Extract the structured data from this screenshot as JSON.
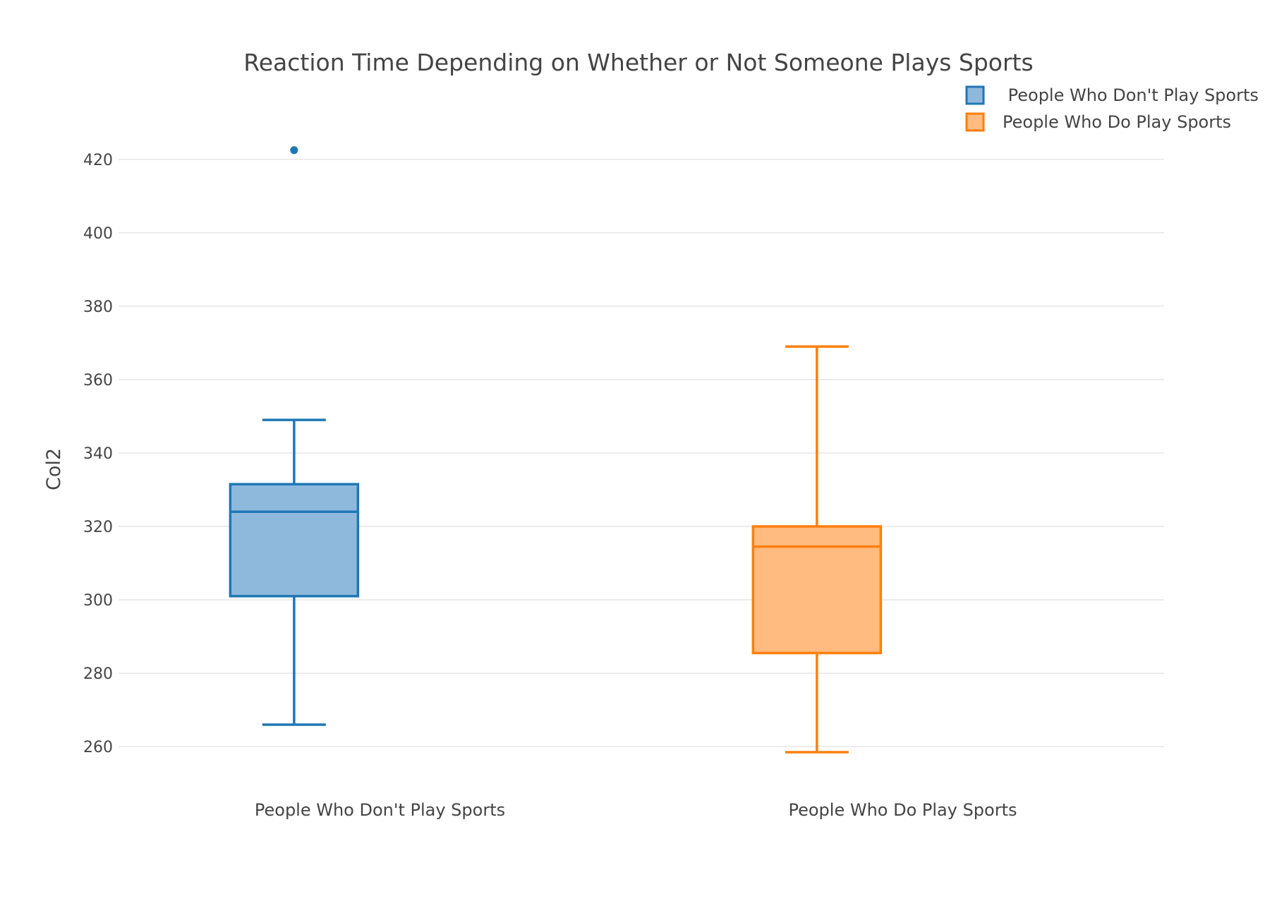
{
  "chart_data": {
    "type": "box",
    "title": "Reaction Time Depending on Whether or Not Someone Plays Sports",
    "xlabel": "",
    "ylabel": "Col2",
    "ylim": [
      251,
      424
    ],
    "yticks": [
      260,
      280,
      300,
      320,
      340,
      360,
      380,
      400,
      420
    ],
    "grid": true,
    "legend_position": "top-right",
    "categories": [
      "People Who Don't Play Sports",
      "People Who Do Play Sports"
    ],
    "series": [
      {
        "name": " People Who Don't Play Sports",
        "category": "People Who Don't Play Sports",
        "color": "#1f77b4",
        "fill": "#8fb9dc",
        "whisker_low": 266,
        "q1": 301,
        "median": 324,
        "q3": 331.5,
        "whisker_high": 349,
        "outliers": [
          422.5
        ]
      },
      {
        "name": "People Who Do Play Sports",
        "category": "People Who Do Play Sports",
        "color": "#ff7f0e",
        "fill": "#ffbb80",
        "whisker_low": 258.5,
        "q1": 285.5,
        "median": 314.5,
        "q3": 320,
        "whisker_high": 369,
        "outliers": []
      }
    ]
  }
}
